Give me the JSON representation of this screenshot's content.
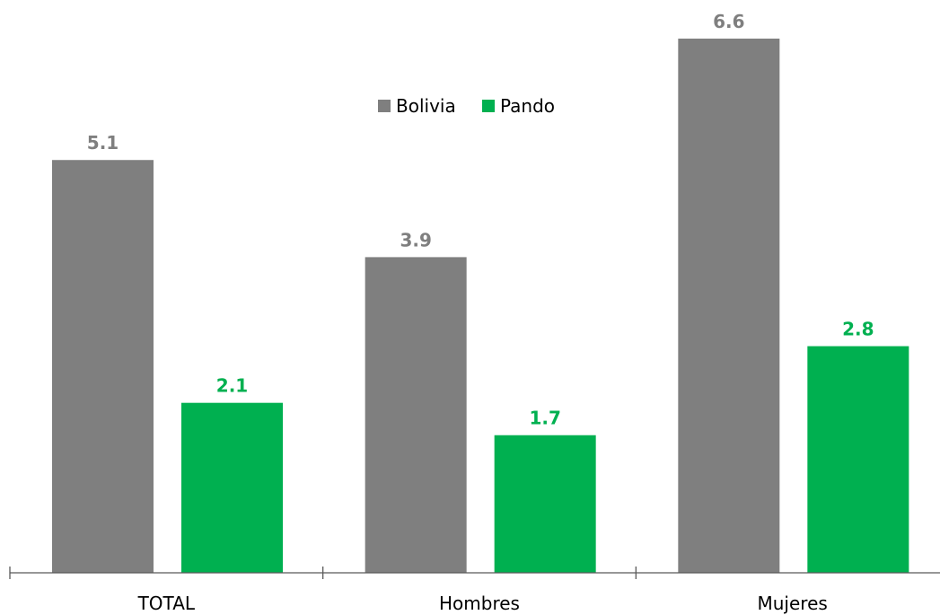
{
  "chart_data": {
    "type": "bar",
    "categories": [
      "TOTAL",
      "Hombres",
      "Mujeres"
    ],
    "series": [
      {
        "name": "Bolivia",
        "values": [
          5.1,
          3.9,
          6.6
        ],
        "color": "#7f7f7f"
      },
      {
        "name": "Pando",
        "values": [
          2.1,
          1.7,
          2.8
        ],
        "color": "#00b050"
      }
    ],
    "title": "",
    "xlabel": "",
    "ylabel": "",
    "ylim": [
      0,
      6.6
    ],
    "grid": false,
    "legend_position": "top-center",
    "value_label_format": "0.0"
  }
}
